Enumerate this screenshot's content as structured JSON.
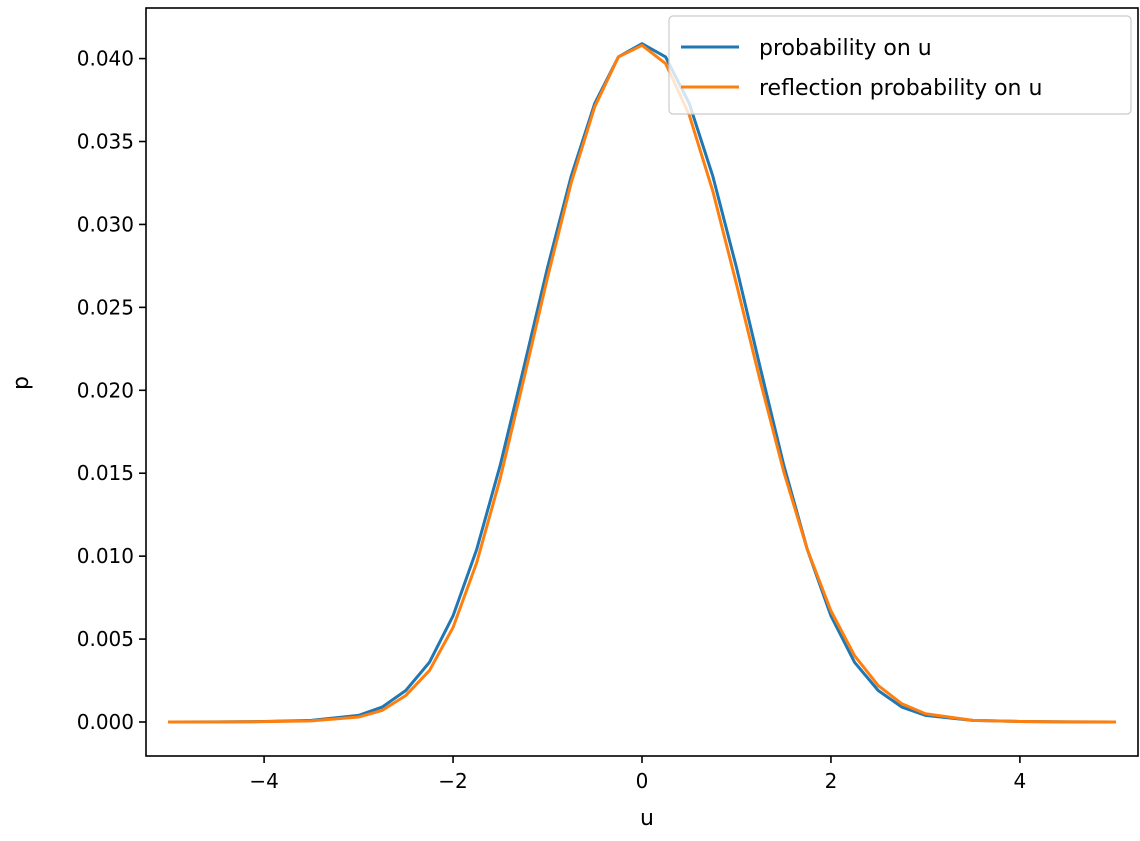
{
  "chart_data": {
    "type": "line",
    "title": "",
    "xlabel": "u",
    "ylabel": "p",
    "xlim": [
      -5.25,
      5.25
    ],
    "ylim": [
      -0.00205,
      0.04305
    ],
    "x_ticks": [
      -4,
      -2,
      0,
      2,
      4
    ],
    "x_tick_labels": [
      "−4",
      "−2",
      "0",
      "2",
      "4"
    ],
    "y_ticks": [
      0.0,
      0.005,
      0.01,
      0.015,
      0.02,
      0.025,
      0.03,
      0.035,
      0.04
    ],
    "y_tick_labels": [
      "0.000",
      "0.005",
      "0.010",
      "0.015",
      "0.020",
      "0.025",
      "0.030",
      "0.035",
      "0.040"
    ],
    "grid": false,
    "legend_position": "top-right",
    "x": [
      -5.0,
      -4.5,
      -4.0,
      -3.5,
      -3.0,
      -2.75,
      -2.5,
      -2.25,
      -2.0,
      -1.75,
      -1.5,
      -1.25,
      -1.0,
      -0.75,
      -0.5,
      -0.25,
      0.0,
      0.25,
      0.5,
      0.75,
      1.0,
      1.25,
      1.5,
      1.75,
      2.0,
      2.25,
      2.5,
      2.75,
      3.0,
      3.5,
      4.0,
      4.5,
      5.0
    ],
    "series": [
      {
        "name": "probability on u",
        "color": "#1f77b4",
        "values": [
          0.0,
          1e-05,
          3e-05,
          0.0001,
          0.0004,
          0.0009,
          0.0019,
          0.0036,
          0.0064,
          0.0104,
          0.0155,
          0.0214,
          0.0274,
          0.0329,
          0.0373,
          0.0401,
          0.0409,
          0.0401,
          0.0373,
          0.0329,
          0.0274,
          0.0214,
          0.0155,
          0.0104,
          0.0064,
          0.0036,
          0.0019,
          0.0009,
          0.0004,
          0.0001,
          3e-05,
          1e-05,
          0.0
        ]
      },
      {
        "name": "reflection probability on u",
        "color": "#ff7f0e",
        "values": [
          0.0,
          0.0,
          2e-05,
          7e-05,
          0.0003,
          0.0007,
          0.0016,
          0.0031,
          0.0057,
          0.0096,
          0.0147,
          0.0207,
          0.0268,
          0.0325,
          0.0371,
          0.0401,
          0.0408,
          0.0397,
          0.0366,
          0.032,
          0.0264,
          0.0206,
          0.0151,
          0.0104,
          0.0067,
          0.004,
          0.0022,
          0.0011,
          0.0005,
          0.0001,
          3e-05,
          1e-05,
          0.0
        ]
      }
    ]
  }
}
